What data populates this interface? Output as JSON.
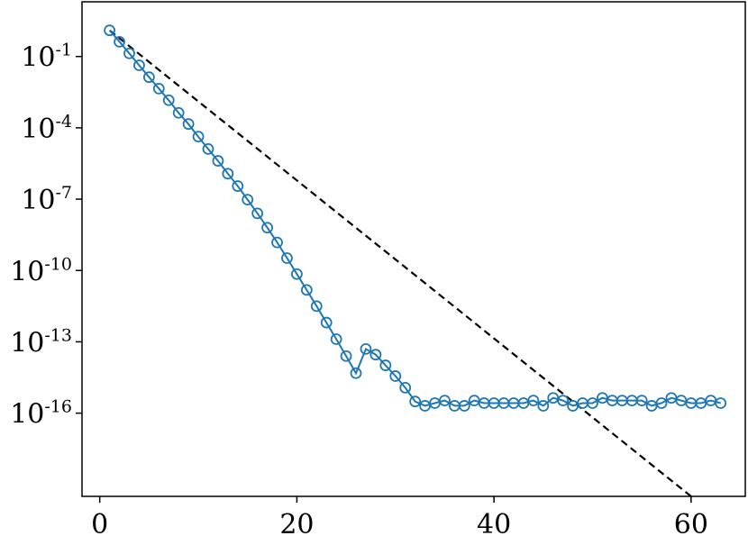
{
  "chart_data": {
    "type": "line",
    "title": "",
    "xlabel": "",
    "ylabel": "",
    "xlim": [
      -1.8,
      65.5
    ],
    "ylim_log10": [
      -19.5,
      1.3
    ],
    "yscale": "log",
    "grid": false,
    "legend": "none",
    "x_ticks": [
      {
        "value": 0,
        "label": "0"
      },
      {
        "value": 20,
        "label": "20"
      },
      {
        "value": 40,
        "label": "40"
      },
      {
        "value": 60,
        "label": "60"
      }
    ],
    "y_ticks": [
      {
        "exp": -1,
        "base": "10",
        "sup": "-1"
      },
      {
        "exp": -4,
        "base": "10",
        "sup": "-4"
      },
      {
        "exp": -7,
        "base": "10",
        "sup": "-7"
      },
      {
        "exp": -10,
        "base": "10",
        "sup": "-10"
      },
      {
        "exp": -13,
        "base": "10",
        "sup": "-13"
      },
      {
        "exp": -16,
        "base": "10",
        "sup": "-16"
      }
    ],
    "series": [
      {
        "style": "solid line with open circle markers",
        "color": "#1f77b4",
        "x": [
          1,
          2,
          3,
          4,
          5,
          6,
          7,
          8,
          9,
          10,
          11,
          12,
          13,
          14,
          15,
          16,
          17,
          18,
          19,
          20,
          21,
          22,
          23,
          24,
          25,
          26,
          27,
          28,
          29,
          30,
          31,
          32,
          33,
          34,
          35,
          36,
          37,
          38,
          39,
          40,
          41,
          42,
          43,
          44,
          45,
          46,
          47,
          48,
          49,
          50,
          51,
          52,
          53,
          54,
          55,
          56,
          57,
          58,
          59,
          60,
          61,
          62,
          63
        ],
        "log10_y": [
          0.1,
          -0.38,
          -0.87,
          -1.37,
          -1.87,
          -2.35,
          -2.84,
          -3.37,
          -3.84,
          -4.37,
          -4.89,
          -5.39,
          -5.93,
          -6.45,
          -7.02,
          -7.6,
          -8.2,
          -8.82,
          -9.48,
          -10.15,
          -10.82,
          -11.5,
          -12.19,
          -12.89,
          -13.6,
          -14.32,
          -13.3,
          -13.54,
          -13.99,
          -14.44,
          -14.93,
          -15.51,
          -15.69,
          -15.58,
          -15.47,
          -15.69,
          -15.69,
          -15.47,
          -15.58,
          -15.58,
          -15.58,
          -15.58,
          -15.58,
          -15.47,
          -15.69,
          -15.36,
          -15.47,
          -15.69,
          -15.58,
          -15.58,
          -15.36,
          -15.47,
          -15.47,
          -15.47,
          -15.47,
          -15.69,
          -15.58,
          -15.36,
          -15.47,
          -15.58,
          -15.58,
          -15.47,
          -15.58
        ]
      },
      {
        "style": "dashed line",
        "color": "#000000",
        "x": [
          1,
          60
        ],
        "log10_y": [
          0.1,
          -19.5
        ]
      }
    ]
  }
}
